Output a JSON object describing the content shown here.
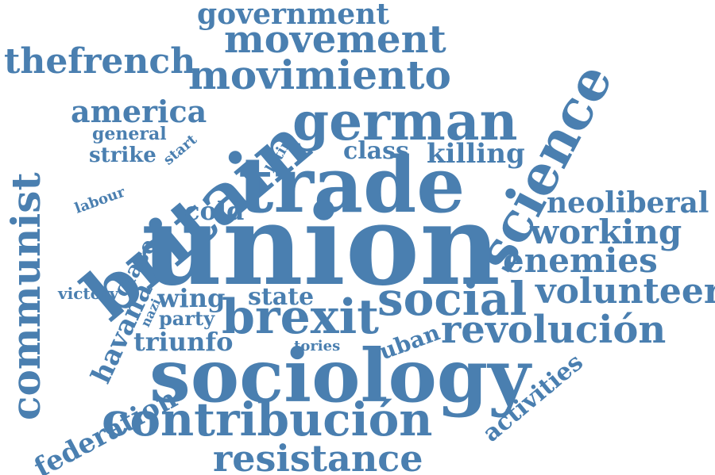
{
  "color": "#4a7fb0",
  "words": [
    "government",
    "movement",
    "thefrench",
    "movimiento",
    "america",
    "german",
    "communist",
    "general",
    "start",
    "strike",
    "latin",
    "class",
    "killing",
    "science",
    "britain",
    "trade",
    "labour",
    "cold",
    "neoliberal",
    "working",
    "union",
    "enemies",
    "clase",
    "victory",
    "havana",
    "nazi",
    "wing",
    "state",
    "party",
    "social",
    "volunteer",
    "brexit",
    "triunfo",
    "tories",
    "cuban",
    "revolución",
    "activities",
    "sociology",
    "federation",
    "contribución",
    "resistance"
  ]
}
